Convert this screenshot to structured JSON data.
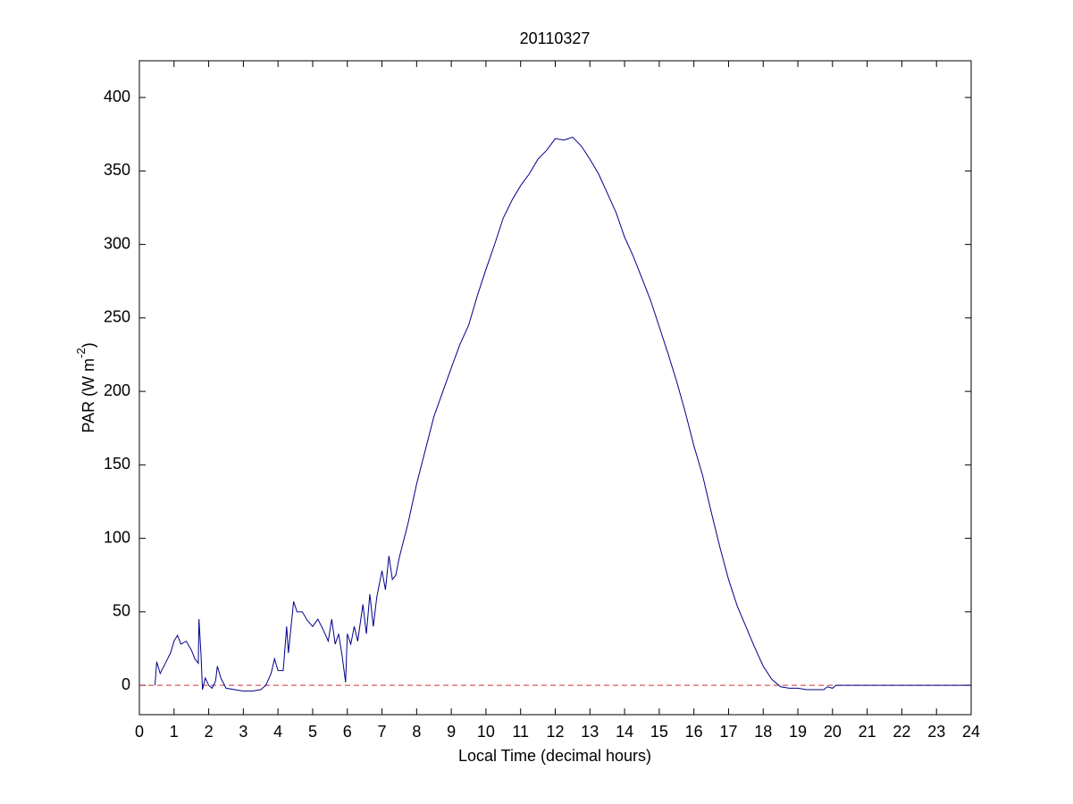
{
  "chart_data": {
    "type": "line",
    "title": "20110327",
    "xlabel": "Local Time (decimal hours)",
    "ylabel": [
      "PAR (W m",
      "-2",
      ")"
    ],
    "x": [
      0.45,
      0.5,
      0.6,
      0.75,
      0.9,
      1.0,
      1.1,
      1.2,
      1.35,
      1.5,
      1.6,
      1.7,
      1.72,
      1.78,
      1.82,
      1.9,
      2.0,
      2.1,
      2.2,
      2.25,
      2.35,
      2.5,
      2.75,
      3.0,
      3.25,
      3.5,
      3.65,
      3.8,
      3.9,
      4.0,
      4.15,
      4.25,
      4.3,
      4.45,
      4.55,
      4.7,
      4.85,
      5.0,
      5.15,
      5.3,
      5.45,
      5.55,
      5.65,
      5.75,
      5.85,
      5.95,
      6.0,
      6.1,
      6.2,
      6.3,
      6.45,
      6.55,
      6.65,
      6.75,
      6.85,
      7.0,
      7.1,
      7.2,
      7.3,
      7.4,
      7.5,
      7.75,
      8.0,
      8.5,
      9.0,
      9.25,
      9.5,
      9.75,
      10.0,
      10.25,
      10.5,
      10.75,
      11.0,
      11.25,
      11.5,
      11.75,
      12.0,
      12.25,
      12.5,
      12.75,
      13.0,
      13.25,
      13.5,
      13.75,
      14.0,
      14.25,
      14.5,
      14.75,
      15.0,
      15.25,
      15.5,
      15.75,
      16.0,
      16.25,
      16.5,
      16.75,
      17.0,
      17.25,
      17.5,
      17.75,
      18.0,
      18.25,
      18.5,
      18.75,
      19.0,
      19.25,
      19.5,
      19.75,
      19.85,
      20.0,
      20.1,
      21,
      22,
      23,
      24
    ],
    "series": [
      {
        "color": "#00008b",
        "values": [
          0,
          16,
          8,
          15,
          22,
          30,
          34,
          28,
          30,
          24,
          18,
          15,
          45,
          20,
          -3,
          5,
          0,
          -2,
          3,
          13,
          5,
          -2,
          -3,
          -4,
          -4,
          -3,
          0,
          8,
          18,
          10,
          10,
          40,
          22,
          57,
          50,
          50,
          44,
          40,
          45,
          38,
          30,
          45,
          28,
          35,
          20,
          2,
          35,
          28,
          40,
          30,
          55,
          35,
          62,
          40,
          60,
          78,
          65,
          88,
          72,
          75,
          87,
          110,
          137,
          183,
          216,
          232,
          245,
          265,
          283,
          300,
          318,
          330,
          340,
          348,
          358,
          364,
          372,
          371,
          373,
          367,
          358,
          348,
          335,
          322,
          305,
          292,
          277,
          262,
          244,
          226,
          207,
          186,
          163,
          143,
          118,
          94,
          72,
          54,
          40,
          26,
          13,
          4,
          -1,
          -2,
          -2,
          -3,
          -3,
          -3,
          -1,
          -2,
          0,
          0,
          0,
          0,
          0
        ]
      }
    ],
    "hline": {
      "value": 0,
      "color": "#cc3333",
      "dashed": true
    },
    "xlim": [
      0,
      24
    ],
    "ylim": [
      -20,
      425
    ],
    "xticks": [
      0,
      1,
      2,
      3,
      4,
      5,
      6,
      7,
      8,
      9,
      10,
      11,
      12,
      13,
      14,
      15,
      16,
      17,
      18,
      19,
      20,
      21,
      22,
      23,
      24
    ],
    "yticks": [
      0,
      50,
      100,
      150,
      200,
      250,
      300,
      350,
      400
    ],
    "grid": false
  }
}
